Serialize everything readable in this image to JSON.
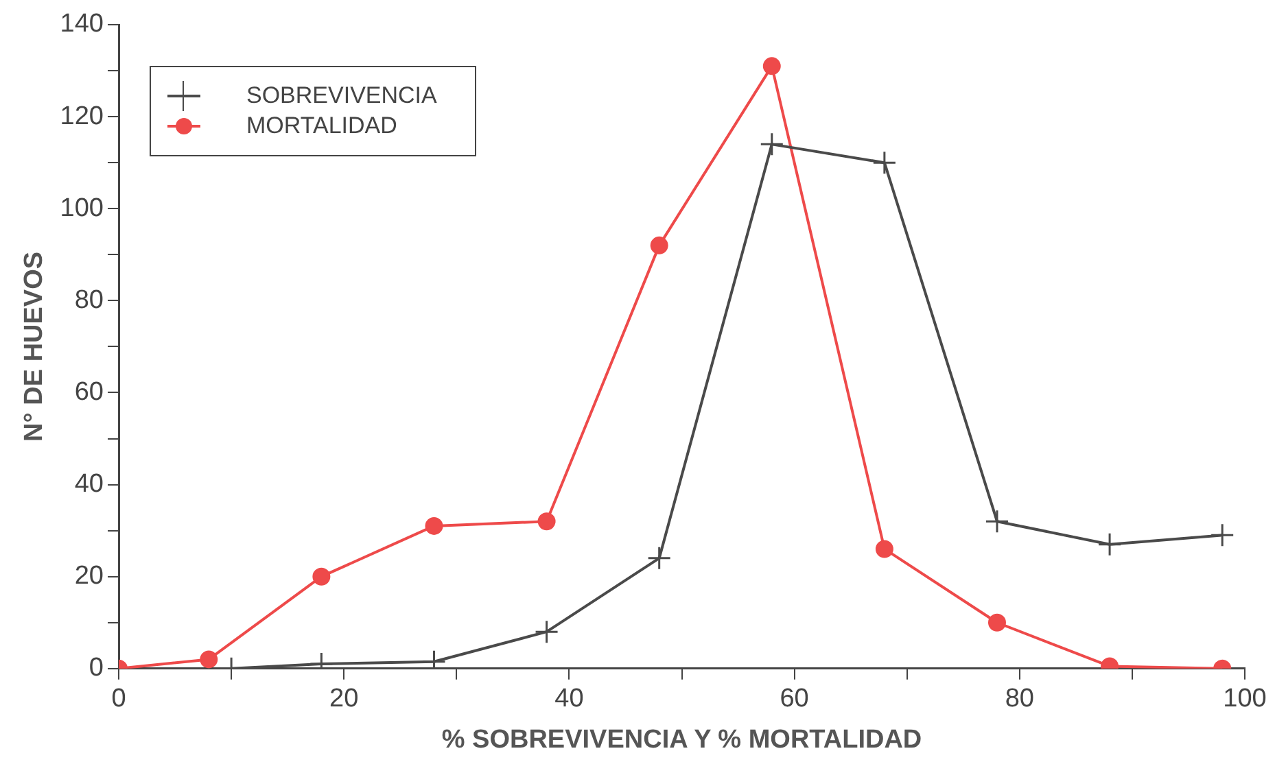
{
  "chart_data": {
    "type": "line",
    "xlabel": "% SOBREVIVENCIA Y % MORTALIDAD",
    "ylabel": "N° DE HUEVOS",
    "xlim": [
      0,
      100
    ],
    "ylim": [
      0,
      140
    ],
    "xticks": [
      0,
      {
        "value": 10,
        "label": null
      },
      20,
      {
        "value": 30,
        "label": null
      },
      40,
      {
        "value": 50,
        "label": null
      },
      60,
      {
        "value": 70,
        "label": null
      },
      80,
      {
        "value": 90,
        "label": null
      },
      100
    ],
    "yticks": [
      0,
      {
        "value": 10,
        "label": null
      },
      20,
      {
        "value": 30,
        "label": null
      },
      40,
      {
        "value": 50,
        "label": null
      },
      60,
      {
        "value": 70,
        "label": null
      },
      80,
      {
        "value": 90,
        "label": null
      },
      100,
      {
        "value": 110,
        "label": null
      },
      120,
      {
        "value": 130,
        "label": null
      },
      140
    ],
    "grid": false,
    "legend": "top left",
    "line_style": "solid",
    "series": [
      {
        "name": "SOBREVIVENCIA",
        "color": "#4a4a4a",
        "marker": "cross",
        "x": [
          10,
          18,
          28,
          38,
          48,
          58,
          68,
          78,
          88,
          98
        ],
        "values": [
          0,
          1,
          1.5,
          8,
          24,
          114,
          110,
          32,
          27,
          29
        ]
      },
      {
        "name": "MORTALIDAD",
        "color": "#ee4a4a",
        "marker": "circle",
        "x": [
          0,
          8,
          18,
          28,
          38,
          48,
          58,
          68,
          78,
          88,
          98
        ],
        "values": [
          0,
          2,
          20,
          31,
          32,
          92,
          131,
          26,
          10,
          0.5,
          0
        ]
      }
    ]
  }
}
